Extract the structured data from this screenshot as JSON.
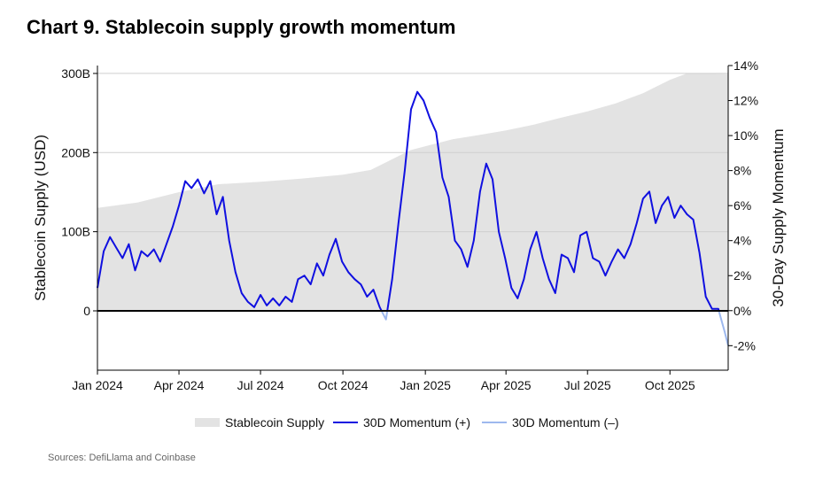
{
  "chart_data": {
    "type": "area+line",
    "title": "Chart 9. Stablecoin supply growth momentum",
    "source": "Sources: DefiLlama and Coinbase",
    "x_labels": [
      "Jan 2024",
      "Apr 2024",
      "Jul 2024",
      "Oct 2024",
      "Jan 2025",
      "Apr 2025",
      "Jul 2025",
      "Oct 2025"
    ],
    "x_range": [
      "2024-01-01",
      "2025-12-05"
    ],
    "y_left": {
      "label": "Stablecoin Supply (USD)",
      "ticks": [
        "300B",
        "200B",
        "100B",
        "0"
      ],
      "range": [
        -75,
        310
      ]
    },
    "y_right": {
      "label": "30-Day Supply Momentum",
      "ticks": [
        "14%",
        "12%",
        "10%",
        "8%",
        "6%",
        "4%",
        "2%",
        "0%",
        "-2%"
      ],
      "range": [
        -3.4,
        14
      ]
    },
    "legend": [
      {
        "label": "Stablecoin Supply",
        "color": "#e3e3e3",
        "kind": "area"
      },
      {
        "label": "30D Momentum (+)",
        "color": "#1010e0",
        "kind": "line"
      },
      {
        "label": "30D Momentum (–)",
        "color": "#9db8ee",
        "kind": "line"
      }
    ],
    "supply_series": {
      "name": "Stablecoin Supply",
      "unit": "USD billions",
      "dates": [
        "2024-01-01",
        "2024-02-15",
        "2024-04-01",
        "2024-05-15",
        "2024-07-01",
        "2024-08-15",
        "2024-10-01",
        "2024-11-01",
        "2024-12-01",
        "2024-12-15",
        "2025-01-01",
        "2025-02-01",
        "2025-03-01",
        "2025-04-01",
        "2025-05-01",
        "2025-06-01",
        "2025-07-01",
        "2025-08-01",
        "2025-09-01",
        "2025-10-01",
        "2025-10-20",
        "2025-11-15",
        "2025-12-05"
      ],
      "values": [
        130,
        137,
        150,
        160,
        163,
        167,
        172,
        178,
        195,
        203,
        208,
        217,
        222,
        228,
        235,
        244,
        252,
        262,
        275,
        292,
        300,
        300,
        299
      ]
    },
    "momentum_series": {
      "name": "30D Momentum",
      "unit": "percent",
      "dates": [
        "2024-01-01",
        "2024-01-08",
        "2024-01-15",
        "2024-01-22",
        "2024-01-29",
        "2024-02-05",
        "2024-02-12",
        "2024-02-19",
        "2024-02-26",
        "2024-03-04",
        "2024-03-11",
        "2024-03-18",
        "2024-03-25",
        "2024-04-01",
        "2024-04-08",
        "2024-04-15",
        "2024-04-22",
        "2024-04-29",
        "2024-05-06",
        "2024-05-13",
        "2024-05-20",
        "2024-05-27",
        "2024-06-03",
        "2024-06-10",
        "2024-06-17",
        "2024-06-24",
        "2024-07-01",
        "2024-07-08",
        "2024-07-15",
        "2024-07-22",
        "2024-07-29",
        "2024-08-05",
        "2024-08-12",
        "2024-08-19",
        "2024-08-26",
        "2024-09-02",
        "2024-09-09",
        "2024-09-16",
        "2024-09-23",
        "2024-09-30",
        "2024-10-07",
        "2024-10-14",
        "2024-10-21",
        "2024-10-28",
        "2024-11-04",
        "2024-11-11",
        "2024-11-18",
        "2024-11-25",
        "2024-12-02",
        "2024-12-09",
        "2024-12-16",
        "2024-12-23",
        "2024-12-30",
        "2025-01-06",
        "2025-01-13",
        "2025-01-20",
        "2025-01-27",
        "2025-02-03",
        "2025-02-10",
        "2025-02-17",
        "2025-02-24",
        "2025-03-03",
        "2025-03-10",
        "2025-03-17",
        "2025-03-24",
        "2025-03-31",
        "2025-04-07",
        "2025-04-14",
        "2025-04-21",
        "2025-04-28",
        "2025-05-05",
        "2025-05-12",
        "2025-05-19",
        "2025-05-26",
        "2025-06-02",
        "2025-06-09",
        "2025-06-16",
        "2025-06-23",
        "2025-06-30",
        "2025-07-07",
        "2025-07-14",
        "2025-07-21",
        "2025-07-28",
        "2025-08-04",
        "2025-08-11",
        "2025-08-18",
        "2025-08-25",
        "2025-09-01",
        "2025-09-08",
        "2025-09-15",
        "2025-09-22",
        "2025-09-29",
        "2025-10-06",
        "2025-10-13",
        "2025-10-20",
        "2025-10-27",
        "2025-11-03",
        "2025-11-10",
        "2025-11-17",
        "2025-11-24",
        "2025-12-01",
        "2025-12-05"
      ],
      "values": [
        1.3,
        3.4,
        4.2,
        3.6,
        3.0,
        3.8,
        2.3,
        3.4,
        3.1,
        3.5,
        2.8,
        3.8,
        4.8,
        6.0,
        7.4,
        7.0,
        7.5,
        6.7,
        7.4,
        5.5,
        6.5,
        4.0,
        2.2,
        1.0,
        0.5,
        0.2,
        0.9,
        0.3,
        0.7,
        0.3,
        0.8,
        0.5,
        1.8,
        2.0,
        1.5,
        2.7,
        2.0,
        3.2,
        4.1,
        2.8,
        2.2,
        1.8,
        1.5,
        0.8,
        1.2,
        0.2,
        -0.5,
        1.8,
        5.0,
        8.0,
        11.5,
        12.5,
        12.0,
        11.0,
        10.2,
        7.6,
        6.5,
        4.0,
        3.5,
        2.5,
        4.0,
        6.8,
        8.4,
        7.5,
        4.5,
        3.0,
        1.3,
        0.7,
        1.8,
        3.5,
        4.5,
        3.0,
        1.8,
        1.0,
        3.2,
        3.0,
        2.2,
        4.3,
        4.5,
        3.0,
        2.8,
        2.0,
        2.8,
        3.5,
        3.0,
        3.8,
        5.0,
        6.4,
        6.8,
        5.0,
        6.0,
        6.5,
        5.3,
        6.0,
        5.5,
        5.2,
        3.3,
        0.8,
        0.1,
        0.1,
        -1.2,
        -2.0
      ]
    }
  }
}
